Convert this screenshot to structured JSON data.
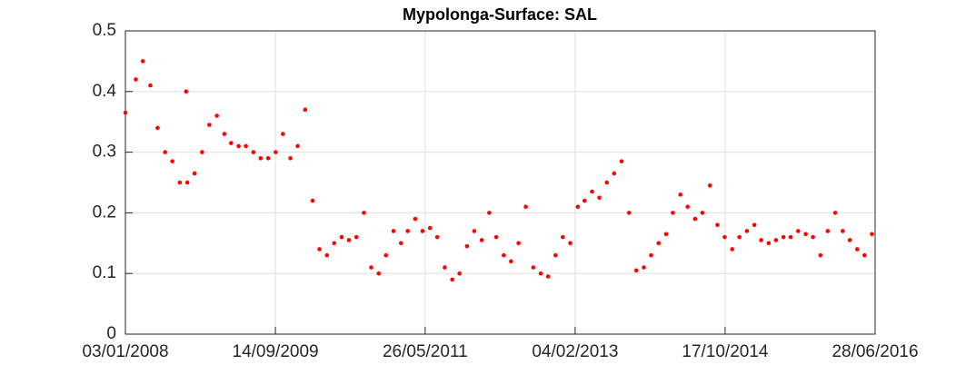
{
  "chart_data": {
    "type": "scatter",
    "title": "Mypolonga-Surface: SAL",
    "color": "#ff0000",
    "grid": true,
    "xlim": [
      "03/01/2008",
      "28/06/2016"
    ],
    "xticks": [
      "03/01/2008",
      "14/09/2009",
      "26/05/2011",
      "04/02/2013",
      "17/10/2014",
      "28/06/2016"
    ],
    "ylim": [
      0,
      0.5
    ],
    "yticks": [
      0,
      0.1,
      0.2,
      0.3,
      0.4,
      0.5
    ],
    "x": [
      "03/01/2008",
      "15/02/2008",
      "15/03/2008",
      "15/04/2008",
      "15/05/2008",
      "15/06/2008",
      "15/07/2008",
      "15/08/2008",
      "10/09/2008",
      "15/09/2008",
      "15/10/2008",
      "15/11/2008",
      "15/12/2008",
      "15/01/2009",
      "15/02/2009",
      "15/03/2009",
      "15/04/2009",
      "15/05/2009",
      "15/06/2009",
      "15/07/2009",
      "15/08/2009",
      "15/09/2009",
      "15/10/2009",
      "15/11/2009",
      "15/12/2009",
      "15/01/2010",
      "15/02/2010",
      "15/03/2010",
      "15/04/2010",
      "15/05/2010",
      "15/06/2010",
      "15/07/2010",
      "15/08/2010",
      "15/09/2010",
      "15/10/2010",
      "15/11/2010",
      "15/12/2010",
      "15/01/2011",
      "15/02/2011",
      "15/03/2011",
      "15/04/2011",
      "15/05/2011",
      "15/06/2011",
      "15/07/2011",
      "15/08/2011",
      "15/09/2011",
      "15/10/2011",
      "15/11/2011",
      "15/12/2011",
      "15/01/2012",
      "15/02/2012",
      "15/03/2012",
      "15/04/2012",
      "15/05/2012",
      "15/06/2012",
      "15/07/2012",
      "15/08/2012",
      "15/09/2012",
      "15/10/2012",
      "15/11/2012",
      "15/12/2012",
      "15/01/2013",
      "15/02/2013",
      "15/03/2013",
      "15/04/2013",
      "15/05/2013",
      "15/06/2013",
      "15/07/2013",
      "15/08/2013",
      "15/09/2013",
      "15/10/2013",
      "15/11/2013",
      "15/12/2013",
      "15/01/2014",
      "15/02/2014",
      "15/03/2014",
      "15/04/2014",
      "15/05/2014",
      "15/06/2014",
      "15/07/2014",
      "15/08/2014",
      "15/09/2014",
      "15/10/2014",
      "15/11/2014",
      "15/12/2014",
      "15/01/2015",
      "15/02/2015",
      "15/03/2015",
      "15/04/2015",
      "15/05/2015",
      "15/06/2015",
      "15/07/2015",
      "15/08/2015",
      "15/09/2015",
      "15/10/2015",
      "15/11/2015",
      "15/12/2015",
      "15/01/2016",
      "15/02/2016",
      "15/03/2016",
      "15/04/2016",
      "15/05/2016",
      "15/06/2016"
    ],
    "values": [
      0.365,
      0.42,
      0.45,
      0.41,
      0.34,
      0.3,
      0.285,
      0.25,
      0.4,
      0.25,
      0.265,
      0.3,
      0.345,
      0.36,
      0.33,
      0.315,
      0.31,
      0.31,
      0.3,
      0.29,
      0.29,
      0.3,
      0.33,
      0.29,
      0.31,
      0.37,
      0.22,
      0.14,
      0.13,
      0.15,
      0.16,
      0.155,
      0.16,
      0.2,
      0.11,
      0.1,
      0.13,
      0.17,
      0.15,
      0.17,
      0.19,
      0.17,
      0.175,
      0.16,
      0.11,
      0.09,
      0.1,
      0.145,
      0.17,
      0.155,
      0.2,
      0.16,
      0.13,
      0.12,
      0.15,
      0.21,
      0.11,
      0.1,
      0.095,
      0.13,
      0.16,
      0.15,
      0.21,
      0.22,
      0.235,
      0.225,
      0.25,
      0.265,
      0.285,
      0.2,
      0.105,
      0.11,
      0.13,
      0.15,
      0.165,
      0.2,
      0.23,
      0.21,
      0.19,
      0.2,
      0.245,
      0.18,
      0.16,
      0.14,
      0.16,
      0.17,
      0.18,
      0.155,
      0.15,
      0.155,
      0.16,
      0.16,
      0.17,
      0.165,
      0.16,
      0.13,
      0.17,
      0.2,
      0.17,
      0.155,
      0.14,
      0.13,
      0.165
    ]
  }
}
